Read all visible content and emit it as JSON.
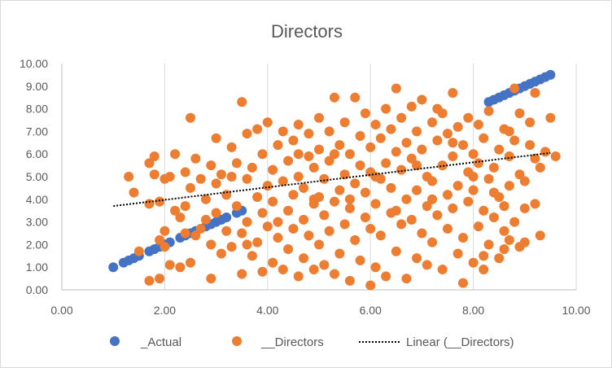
{
  "chart_data": {
    "type": "scatter",
    "title": "Directors",
    "xlabel": "",
    "ylabel": "",
    "xlim": [
      0,
      10
    ],
    "ylim": [
      0,
      10
    ],
    "x_ticks": [
      "0.00",
      "2.00",
      "4.00",
      "6.00",
      "8.00",
      "10.00"
    ],
    "y_ticks": [
      "0.00",
      "1.00",
      "2.00",
      "3.00",
      "4.00",
      "5.00",
      "6.00",
      "7.00",
      "8.00",
      "9.00",
      "10.00"
    ],
    "grid": "vertical-major",
    "legend_position": "bottom",
    "colors": {
      "actual": "#4472C4",
      "directors": "#ED7D31",
      "trend": "#000000",
      "grid": "#d9d9d9",
      "text": "#595959"
    },
    "series": [
      {
        "name": "_Actual",
        "color": "#4472C4",
        "points": [
          [
            1.0,
            1.0
          ],
          [
            1.2,
            1.2
          ],
          [
            1.3,
            1.3
          ],
          [
            1.4,
            1.4
          ],
          [
            1.5,
            1.5
          ],
          [
            1.7,
            1.7
          ],
          [
            1.8,
            1.8
          ],
          [
            1.9,
            1.9
          ],
          [
            2.0,
            2.0
          ],
          [
            2.1,
            2.1
          ],
          [
            2.3,
            2.3
          ],
          [
            2.4,
            2.4
          ],
          [
            2.5,
            2.5
          ],
          [
            2.6,
            2.6
          ],
          [
            2.8,
            2.8
          ],
          [
            2.9,
            2.9
          ],
          [
            3.0,
            3.0
          ],
          [
            3.1,
            3.1
          ],
          [
            3.2,
            3.2
          ],
          [
            3.4,
            3.4
          ],
          [
            3.5,
            3.5
          ],
          [
            8.3,
            8.3
          ],
          [
            8.4,
            8.4
          ],
          [
            8.5,
            8.5
          ],
          [
            8.6,
            8.6
          ],
          [
            8.7,
            8.7
          ],
          [
            8.8,
            8.8
          ],
          [
            8.9,
            8.9
          ],
          [
            9.0,
            9.0
          ],
          [
            9.1,
            9.1
          ],
          [
            9.2,
            9.2
          ],
          [
            9.3,
            9.3
          ],
          [
            9.4,
            9.4
          ],
          [
            9.5,
            9.5
          ]
        ]
      },
      {
        "name": "__Directors",
        "color": "#ED7D31",
        "points": [
          [
            1.3,
            5.0
          ],
          [
            1.4,
            4.3
          ],
          [
            1.5,
            1.7
          ],
          [
            1.7,
            3.8
          ],
          [
            1.7,
            0.4
          ],
          [
            1.7,
            5.6
          ],
          [
            1.8,
            5.1
          ],
          [
            1.8,
            5.9
          ],
          [
            1.9,
            3.9
          ],
          [
            1.9,
            0.5
          ],
          [
            1.9,
            2.2
          ],
          [
            2.0,
            4.9
          ],
          [
            2.0,
            2.6
          ],
          [
            2.0,
            1.9
          ],
          [
            2.1,
            1.1
          ],
          [
            2.1,
            5.0
          ],
          [
            2.2,
            6.0
          ],
          [
            2.2,
            3.5
          ],
          [
            2.3,
            1.0
          ],
          [
            2.3,
            3.2
          ],
          [
            2.4,
            5.2
          ],
          [
            2.4,
            3.7
          ],
          [
            2.5,
            4.5
          ],
          [
            2.5,
            7.6
          ],
          [
            2.5,
            1.2
          ],
          [
            2.6,
            5.8
          ],
          [
            2.6,
            2.4
          ],
          [
            2.7,
            4.9
          ],
          [
            2.7,
            2.7
          ],
          [
            2.8,
            3.1
          ],
          [
            2.8,
            4.0
          ],
          [
            2.9,
            5.5
          ],
          [
            2.9,
            2.0
          ],
          [
            3.0,
            4.7
          ],
          [
            3.0,
            6.7
          ],
          [
            3.0,
            3.4
          ],
          [
            3.1,
            1.6
          ],
          [
            3.1,
            5.1
          ],
          [
            3.2,
            2.6
          ],
          [
            3.2,
            4.2
          ],
          [
            3.3,
            6.3
          ],
          [
            3.3,
            1.9
          ],
          [
            3.4,
            3.7
          ],
          [
            3.4,
            5.6
          ],
          [
            3.5,
            8.3
          ],
          [
            3.5,
            2.5
          ],
          [
            3.5,
            0.7
          ],
          [
            3.6,
            4.9
          ],
          [
            3.6,
            6.9
          ],
          [
            3.6,
            3.0
          ],
          [
            3.7,
            1.5
          ],
          [
            3.7,
            5.4
          ],
          [
            3.8,
            4.1
          ],
          [
            3.8,
            2.1
          ],
          [
            3.8,
            7.1
          ],
          [
            3.9,
            0.8
          ],
          [
            3.9,
            3.4
          ],
          [
            3.9,
            6.0
          ],
          [
            4.0,
            4.6
          ],
          [
            4.0,
            2.8
          ],
          [
            4.0,
            7.4
          ],
          [
            4.1,
            1.2
          ],
          [
            4.1,
            5.3
          ],
          [
            4.1,
            3.9
          ],
          [
            4.2,
            6.4
          ],
          [
            4.2,
            2.3
          ],
          [
            4.3,
            4.8
          ],
          [
            4.3,
            0.9
          ],
          [
            4.3,
            7.0
          ],
          [
            4.4,
            3.5
          ],
          [
            4.4,
            5.7
          ],
          [
            4.4,
            1.8
          ],
          [
            4.5,
            4.2
          ],
          [
            4.5,
            6.6
          ],
          [
            4.5,
            2.7
          ],
          [
            4.6,
            5.0
          ],
          [
            4.6,
            0.6
          ],
          [
            4.6,
            7.3
          ],
          [
            4.7,
            3.1
          ],
          [
            4.7,
            4.5
          ],
          [
            4.7,
            1.4
          ],
          [
            4.8,
            5.9
          ],
          [
            4.8,
            2.4
          ],
          [
            4.8,
            6.9
          ],
          [
            4.9,
            3.8
          ],
          [
            4.9,
            0.9
          ],
          [
            4.9,
            5.4
          ],
          [
            5.0,
            4.1
          ],
          [
            5.0,
            7.6
          ],
          [
            5.0,
            2.0
          ],
          [
            5.0,
            6.2
          ],
          [
            5.1,
            3.3
          ],
          [
            5.1,
            1.1
          ],
          [
            5.1,
            4.9
          ],
          [
            5.2,
            5.7
          ],
          [
            5.2,
            2.6
          ],
          [
            5.2,
            7.0
          ],
          [
            5.3,
            8.5
          ],
          [
            5.3,
            3.9
          ],
          [
            5.3,
            0.7
          ],
          [
            5.4,
            6.4
          ],
          [
            5.4,
            4.4
          ],
          [
            5.4,
            1.6
          ],
          [
            5.5,
            5.1
          ],
          [
            5.5,
            2.9
          ],
          [
            5.5,
            7.4
          ],
          [
            5.6,
            3.6
          ],
          [
            5.6,
            6.0
          ],
          [
            5.6,
            0.4
          ],
          [
            5.7,
            8.5
          ],
          [
            5.7,
            4.7
          ],
          [
            5.7,
            2.2
          ],
          [
            5.8,
            5.5
          ],
          [
            5.8,
            6.8
          ],
          [
            5.8,
            1.3
          ],
          [
            5.9,
            3.2
          ],
          [
            5.9,
            7.8
          ],
          [
            5.9,
            4.3
          ],
          [
            6.0,
            0.2
          ],
          [
            6.0,
            6.3
          ],
          [
            6.0,
            2.7
          ],
          [
            6.0,
            5.2
          ],
          [
            6.1,
            7.3
          ],
          [
            6.1,
            3.8
          ],
          [
            6.1,
            1.0
          ],
          [
            6.2,
            4.9
          ],
          [
            6.2,
            6.7
          ],
          [
            6.2,
            2.4
          ],
          [
            6.3,
            8.0
          ],
          [
            6.3,
            5.6
          ],
          [
            6.3,
            0.6
          ],
          [
            6.4,
            3.4
          ],
          [
            6.4,
            7.1
          ],
          [
            6.4,
            4.5
          ],
          [
            6.5,
            1.7
          ],
          [
            6.5,
            6.1
          ],
          [
            6.5,
            8.9
          ],
          [
            6.6,
            2.9
          ],
          [
            6.6,
            5.3
          ],
          [
            6.6,
            7.6
          ],
          [
            6.7,
            4.0
          ],
          [
            6.7,
            0.5
          ],
          [
            6.7,
            6.5
          ],
          [
            6.8,
            3.1
          ],
          [
            6.8,
            8.1
          ],
          [
            6.8,
            5.8
          ],
          [
            6.9,
            1.4
          ],
          [
            6.9,
            7.0
          ],
          [
            6.9,
            4.4
          ],
          [
            7.0,
            2.5
          ],
          [
            7.0,
            6.2
          ],
          [
            7.0,
            8.4
          ],
          [
            7.1,
            3.7
          ],
          [
            7.1,
            5.0
          ],
          [
            7.1,
            1.1
          ],
          [
            7.2,
            7.4
          ],
          [
            7.2,
            4.8
          ],
          [
            7.2,
            2.1
          ],
          [
            7.3,
            6.6
          ],
          [
            7.3,
            8.0
          ],
          [
            7.3,
            3.3
          ],
          [
            7.4,
            5.5
          ],
          [
            7.4,
            0.9
          ],
          [
            7.4,
            7.8
          ],
          [
            7.5,
            4.2
          ],
          [
            7.5,
            2.7
          ],
          [
            7.5,
            6.9
          ],
          [
            7.6,
            8.7
          ],
          [
            7.6,
            3.6
          ],
          [
            7.6,
            5.9
          ],
          [
            7.7,
            1.6
          ],
          [
            7.7,
            7.2
          ],
          [
            7.7,
            4.6
          ],
          [
            7.8,
            2.3
          ],
          [
            7.8,
            6.4
          ],
          [
            7.8,
            0.3
          ],
          [
            7.9,
            5.2
          ],
          [
            7.9,
            3.9
          ],
          [
            7.9,
            7.6
          ],
          [
            8.0,
            1.2
          ],
          [
            8.0,
            6.0
          ],
          [
            8.0,
            4.4
          ],
          [
            8.1,
            2.8
          ],
          [
            8.1,
            7.3
          ],
          [
            8.1,
            5.6
          ],
          [
            8.2,
            3.5
          ],
          [
            8.2,
            1.5
          ],
          [
            8.2,
            6.7
          ],
          [
            8.3,
            4.9
          ],
          [
            8.3,
            2.0
          ],
          [
            8.3,
            7.9
          ],
          [
            8.4,
            3.2
          ],
          [
            8.4,
            5.4
          ],
          [
            8.5,
            1.4
          ],
          [
            8.5,
            6.2
          ],
          [
            8.5,
            4.1
          ],
          [
            8.6,
            2.6
          ],
          [
            8.6,
            7.1
          ],
          [
            8.6,
            3.7
          ],
          [
            8.7,
            5.9
          ],
          [
            8.7,
            2.2
          ],
          [
            8.7,
            4.6
          ],
          [
            8.8,
            8.9
          ],
          [
            8.8,
            3.0
          ],
          [
            8.8,
            6.6
          ],
          [
            8.9,
            1.9
          ],
          [
            8.9,
            5.1
          ],
          [
            8.9,
            7.8
          ],
          [
            9.0,
            2.1
          ],
          [
            9.0,
            3.6
          ],
          [
            9.1,
            6.4
          ],
          [
            9.1,
            7.4
          ],
          [
            9.2,
            5.8
          ],
          [
            9.2,
            3.8
          ],
          [
            9.2,
            8.7
          ],
          [
            9.3,
            5.4
          ],
          [
            9.3,
            2.4
          ],
          [
            9.4,
            6.1
          ],
          [
            9.5,
            7.6
          ],
          [
            9.6,
            5.9
          ],
          [
            2.4,
            2.5
          ],
          [
            2.9,
            0.5
          ],
          [
            3.3,
            5.0
          ],
          [
            3.6,
            2.0
          ],
          [
            4.2,
            3.0
          ],
          [
            4.6,
            6.0
          ],
          [
            4.9,
            4.0
          ],
          [
            5.3,
            6.0
          ],
          [
            5.6,
            4.0
          ],
          [
            6.1,
            5.0
          ],
          [
            6.5,
            3.5
          ],
          [
            6.9,
            5.5
          ],
          [
            7.2,
            4.0
          ],
          [
            7.6,
            6.5
          ],
          [
            8.0,
            5.0
          ],
          [
            8.4,
            4.3
          ],
          [
            8.7,
            7.0
          ],
          [
            9.0,
            4.8
          ],
          [
            8.6,
            1.8
          ],
          [
            8.2,
            0.9
          ]
        ]
      },
      {
        "name": "Linear (__Directors)",
        "type": "trendline",
        "color": "#000000",
        "line": [
          [
            1.0,
            3.7
          ],
          [
            9.5,
            6.05
          ]
        ]
      }
    ]
  }
}
